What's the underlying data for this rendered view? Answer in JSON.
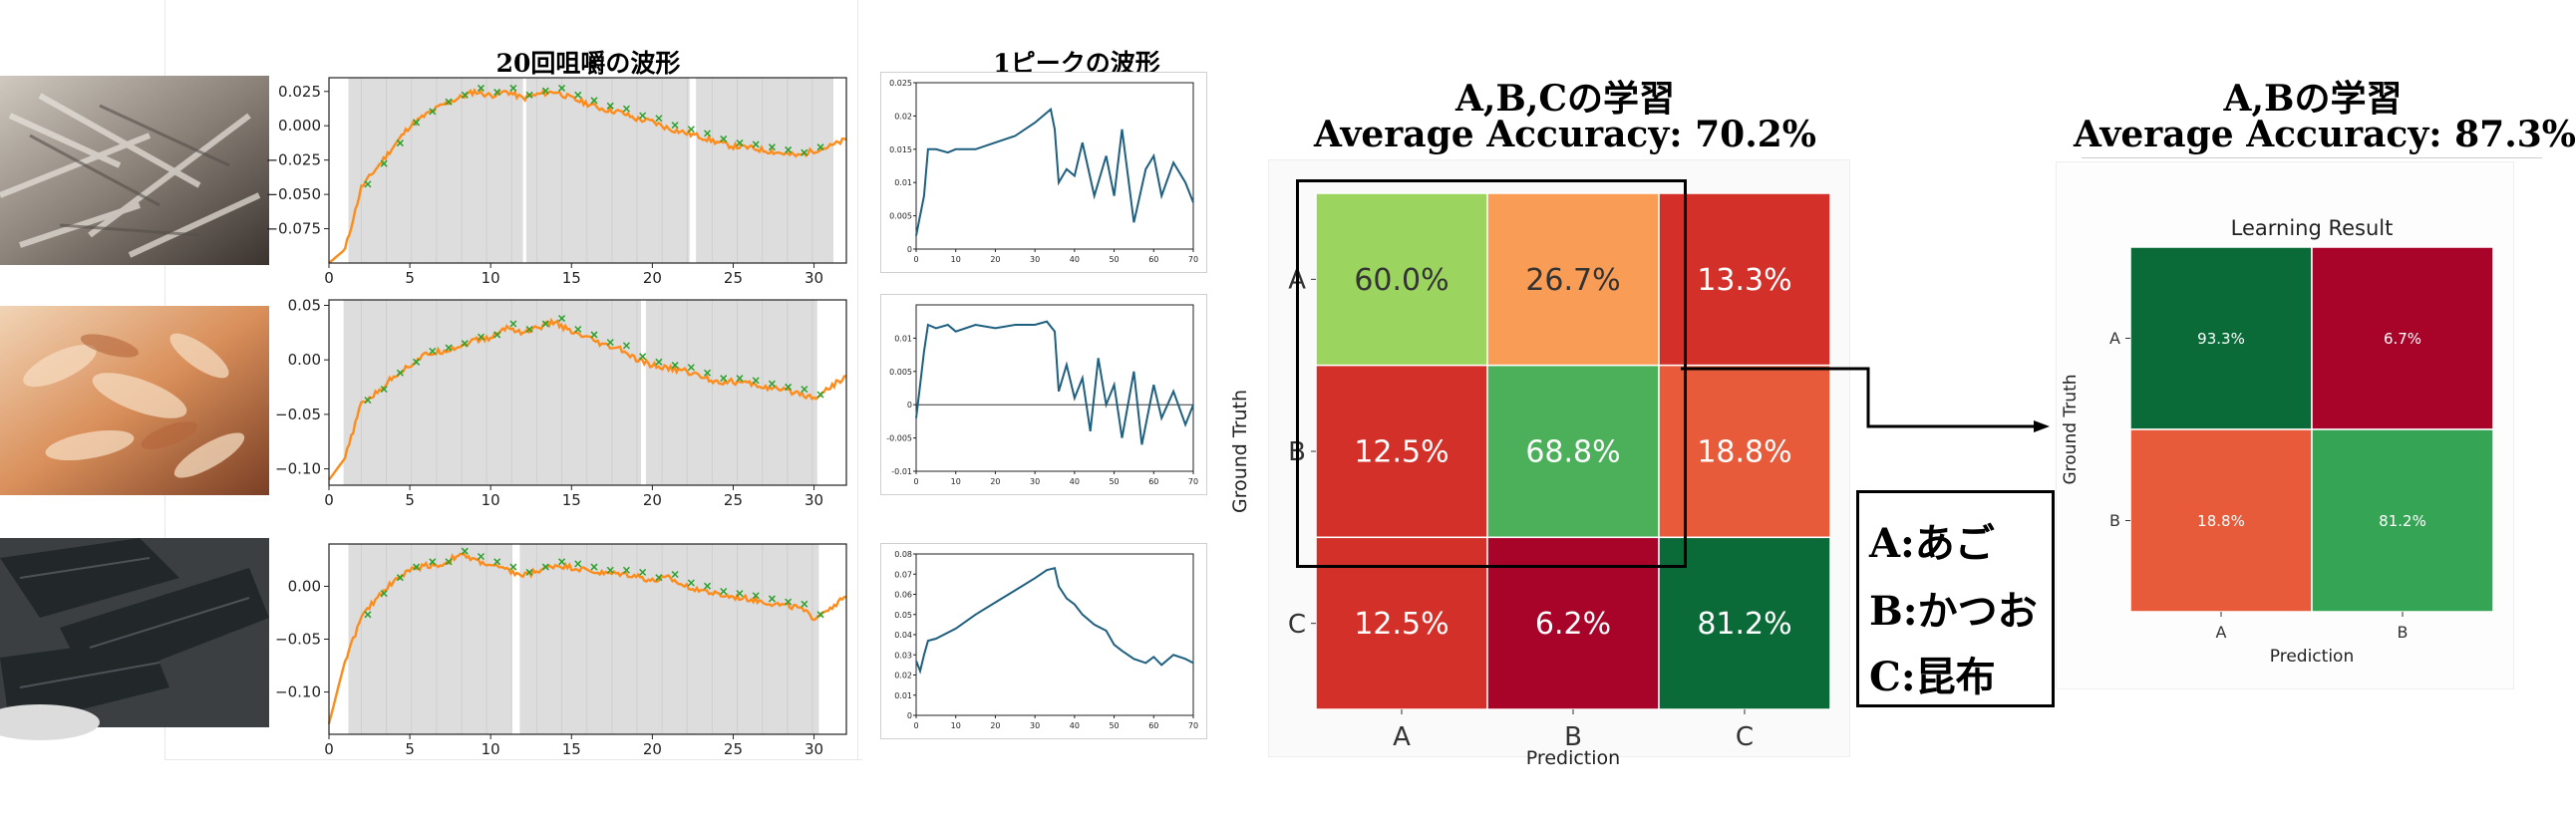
{
  "titles": {
    "chew_wave": "20回咀嚼の波形",
    "peak_wave": "1ピークの波形",
    "abc_title": "A,B,Cの学習",
    "abc_accuracy": "Average Accuracy: 70.2%",
    "ab_title": "A,Bの学習",
    "ab_accuracy": "Average Accuracy: 87.3%"
  },
  "legend": {
    "a": "A:あご",
    "b": "B:かつお",
    "c": "C:昆布"
  },
  "colors": {
    "orange": "#ff8c1a",
    "green_marker": "#2ca02c",
    "teal": "#1f5f7f",
    "band": "#dddddd"
  },
  "chart_data": [
    {
      "type": "line",
      "name": "wave-ago",
      "x": [
        0,
        1,
        2,
        3,
        4,
        5,
        6,
        7,
        8,
        9,
        10,
        11,
        12,
        13,
        14,
        15,
        16,
        17,
        18,
        19,
        20,
        21,
        22,
        23,
        24,
        25,
        26,
        27,
        28,
        29,
        30,
        31,
        32
      ],
      "y": [
        -0.1,
        -0.09,
        -0.045,
        -0.03,
        -0.015,
        0.0,
        0.008,
        0.015,
        0.02,
        0.025,
        0.022,
        0.025,
        0.02,
        0.023,
        0.025,
        0.02,
        0.016,
        0.012,
        0.01,
        0.005,
        0.003,
        -0.002,
        -0.005,
        -0.008,
        -0.012,
        -0.015,
        -0.016,
        -0.018,
        -0.02,
        -0.022,
        -0.018,
        -0.015,
        -0.01
      ],
      "xlim": [
        0,
        32
      ],
      "ylim": [
        -0.1,
        0.035
      ],
      "xticks": [
        0,
        5,
        10,
        15,
        20,
        25,
        30
      ],
      "yticks": [
        0.025,
        0.0,
        -0.025,
        -0.05,
        -0.075
      ],
      "ytick_labels": [
        "0.025",
        "0.000",
        "−0.025",
        "−0.050",
        "−0.075"
      ],
      "bands": [
        [
          1.2,
          12.0
        ],
        [
          12.2,
          22.3
        ],
        [
          22.7,
          31.2
        ]
      ]
    },
    {
      "type": "line",
      "name": "wave-katsuo",
      "x": [
        0,
        1,
        2,
        3,
        4,
        5,
        6,
        7,
        8,
        9,
        10,
        11,
        12,
        13,
        14,
        15,
        16,
        17,
        18,
        19,
        20,
        21,
        22,
        23,
        24,
        25,
        26,
        27,
        28,
        29,
        30,
        31,
        32
      ],
      "y": [
        -0.11,
        -0.09,
        -0.04,
        -0.03,
        -0.015,
        -0.005,
        0.005,
        0.008,
        0.012,
        0.018,
        0.02,
        0.03,
        0.025,
        0.03,
        0.035,
        0.025,
        0.02,
        0.013,
        0.01,
        0.0,
        -0.005,
        -0.008,
        -0.01,
        -0.015,
        -0.02,
        -0.02,
        -0.022,
        -0.025,
        -0.028,
        -0.03,
        -0.035,
        -0.025,
        -0.015
      ],
      "xlim": [
        0,
        32
      ],
      "ylim": [
        -0.115,
        0.055
      ],
      "xticks": [
        0,
        5,
        10,
        15,
        20,
        25,
        30
      ],
      "yticks": [
        0.05,
        0.0,
        -0.05,
        -0.1
      ],
      "ytick_labels": [
        "0.05",
        "0.00",
        "−0.05",
        "−0.10"
      ],
      "bands": [
        [
          0.9,
          19.3
        ],
        [
          19.6,
          30.2
        ]
      ]
    },
    {
      "type": "line",
      "name": "wave-konbu",
      "x": [
        0,
        1,
        2,
        3,
        4,
        5,
        6,
        7,
        8,
        9,
        10,
        11,
        12,
        13,
        14,
        15,
        16,
        17,
        18,
        19,
        20,
        21,
        22,
        23,
        24,
        25,
        26,
        27,
        28,
        29,
        30,
        31,
        32
      ],
      "y": [
        -0.13,
        -0.07,
        -0.03,
        -0.01,
        0.005,
        0.015,
        0.02,
        0.02,
        0.03,
        0.025,
        0.02,
        0.015,
        0.01,
        0.015,
        0.02,
        0.018,
        0.015,
        0.012,
        0.012,
        0.01,
        0.005,
        0.008,
        0.0,
        -0.003,
        -0.008,
        -0.01,
        -0.012,
        -0.015,
        -0.018,
        -0.02,
        -0.03,
        -0.02,
        -0.01
      ],
      "xlim": [
        0,
        32
      ],
      "ylim": [
        -0.14,
        0.04
      ],
      "xticks": [
        0,
        5,
        10,
        15,
        20,
        25,
        30
      ],
      "yticks": [
        0.0,
        -0.05,
        -0.1
      ],
      "ytick_labels": [
        "0.00",
        "−0.05",
        "−0.10"
      ],
      "bands": [
        [
          1.2,
          11.3
        ],
        [
          11.8,
          30.3
        ]
      ]
    },
    {
      "type": "line",
      "name": "peak-ago",
      "x": [
        0,
        2,
        3,
        5,
        8,
        10,
        15,
        20,
        25,
        30,
        34,
        35,
        36,
        38,
        40,
        42,
        45,
        48,
        50,
        52,
        55,
        58,
        60,
        62,
        65,
        68,
        70
      ],
      "y": [
        0.002,
        0.008,
        0.015,
        0.015,
        0.0145,
        0.015,
        0.015,
        0.016,
        0.017,
        0.019,
        0.021,
        0.018,
        0.01,
        0.012,
        0.011,
        0.016,
        0.008,
        0.014,
        0.008,
        0.018,
        0.004,
        0.012,
        0.014,
        0.008,
        0.013,
        0.01,
        0.007
      ],
      "xlim": [
        0,
        70
      ],
      "ylim": [
        0,
        0.025
      ],
      "xticks": [
        0,
        10,
        20,
        30,
        40,
        50,
        60,
        70
      ],
      "yticks": [
        0.025,
        0.02,
        0.015,
        0.01,
        0.005,
        0.0
      ],
      "ytick_labels": [
        "0.025",
        "0.02",
        "0.015",
        "0.01",
        "0.005",
        "0"
      ]
    },
    {
      "type": "line",
      "name": "peak-katsuo",
      "x": [
        0,
        1,
        2,
        3,
        5,
        8,
        10,
        15,
        20,
        25,
        30,
        33,
        35,
        36,
        38,
        40,
        42,
        44,
        46,
        48,
        50,
        52,
        55,
        57,
        60,
        62,
        65,
        68,
        70
      ],
      "y": [
        -0.002,
        0.003,
        0.008,
        0.012,
        0.0115,
        0.012,
        0.011,
        0.012,
        0.0115,
        0.012,
        0.012,
        0.0125,
        0.011,
        0.002,
        0.006,
        0.001,
        0.004,
        -0.004,
        0.007,
        0.0,
        0.003,
        -0.005,
        0.005,
        -0.006,
        0.003,
        -0.002,
        0.002,
        -0.003,
        0.0
      ],
      "xlim": [
        0,
        70
      ],
      "ylim": [
        -0.01,
        0.015
      ],
      "xticks": [
        0,
        10,
        20,
        30,
        40,
        50,
        60,
        70
      ],
      "yticks": [
        0.01,
        0.005,
        0.0,
        -0.005,
        -0.01
      ],
      "ytick_labels": [
        "0.01",
        "0.005",
        "0",
        "-0.005",
        "-0.01"
      ]
    },
    {
      "type": "line",
      "name": "peak-konbu",
      "x": [
        0,
        1,
        2,
        3,
        5,
        10,
        15,
        20,
        25,
        30,
        33,
        35,
        36,
        38,
        40,
        42,
        45,
        48,
        50,
        52,
        55,
        58,
        60,
        62,
        65,
        68,
        70
      ],
      "y": [
        0.027,
        0.022,
        0.03,
        0.037,
        0.038,
        0.043,
        0.05,
        0.056,
        0.062,
        0.068,
        0.072,
        0.073,
        0.064,
        0.058,
        0.055,
        0.05,
        0.045,
        0.042,
        0.035,
        0.032,
        0.028,
        0.026,
        0.029,
        0.025,
        0.03,
        0.028,
        0.026
      ],
      "xlim": [
        0,
        70
      ],
      "ylim": [
        0,
        0.08
      ],
      "xticks": [
        0,
        10,
        20,
        30,
        40,
        50,
        60,
        70
      ],
      "yticks": [
        0.08,
        0.07,
        0.06,
        0.05,
        0.04,
        0.03,
        0.02,
        0.01,
        0.0
      ],
      "ytick_labels": [
        "0.08",
        "0.07",
        "0.06",
        "0.05",
        "0.04",
        "0.03",
        "0.02",
        "0.01",
        "0"
      ]
    },
    {
      "type": "heatmap",
      "name": "confusion-abc",
      "rows": [
        "A",
        "B",
        "C"
      ],
      "cols": [
        "A",
        "B",
        "C"
      ],
      "values": [
        [
          60.0,
          26.7,
          13.3
        ],
        [
          12.5,
          68.8,
          18.8
        ],
        [
          12.5,
          6.2,
          81.2
        ]
      ],
      "labels": [
        [
          "60.0%",
          "26.7%",
          "13.3%"
        ],
        [
          "12.5%",
          "68.8%",
          "18.8%"
        ],
        [
          "12.5%",
          "6.2%",
          "81.2%"
        ]
      ],
      "colors": [
        [
          "#9bd55f",
          "#f99c56",
          "#d3302a"
        ],
        [
          "#d3302a",
          "#4cb05a",
          "#e75a3a"
        ],
        [
          "#d3302a",
          "#a8042a",
          "#0a6b38"
        ]
      ],
      "text_colors": [
        [
          "#333333",
          "#333333",
          "#ffffff"
        ],
        [
          "#ffffff",
          "#ffffff",
          "#ffffff"
        ],
        [
          "#ffffff",
          "#ffffff",
          "#ffffff"
        ]
      ],
      "xlabel": "Prediction",
      "ylabel": "Ground Truth"
    },
    {
      "type": "heatmap",
      "name": "confusion-ab",
      "title": "Learning Result",
      "rows": [
        "A",
        "B"
      ],
      "cols": [
        "A",
        "B"
      ],
      "values": [
        [
          93.3,
          6.7
        ],
        [
          18.8,
          81.2
        ]
      ],
      "labels": [
        [
          "93.3%",
          "6.7%"
        ],
        [
          "18.8%",
          "81.2%"
        ]
      ],
      "colors": [
        [
          "#0a6b38",
          "#a8042a"
        ],
        [
          "#e75a3a",
          "#35a555"
        ]
      ],
      "xlabel": "Prediction",
      "ylabel": "Ground Truth"
    }
  ]
}
